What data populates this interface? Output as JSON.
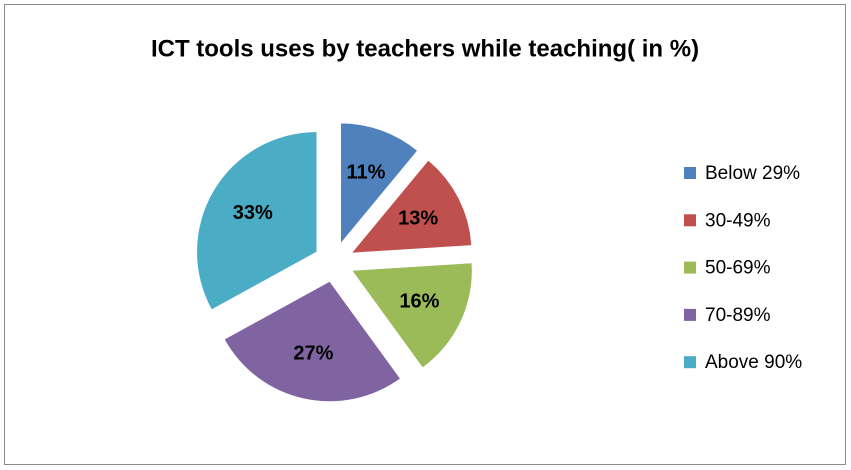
{
  "chart_data": {
    "type": "pie",
    "title": "ICT tools uses by teachers while teaching( in %)",
    "categories": [
      "Below 29%",
      "30-49%",
      "50-69%",
      "70-89%",
      "Above 90%"
    ],
    "values": [
      11,
      13,
      16,
      27,
      33
    ],
    "value_labels": [
      "11%",
      "13%",
      "16%",
      "27%",
      "33%"
    ],
    "colors": [
      "#4f81bd",
      "#c0504d",
      "#9bbb59",
      "#8064a2",
      "#4bacc6"
    ],
    "legend": "right"
  }
}
